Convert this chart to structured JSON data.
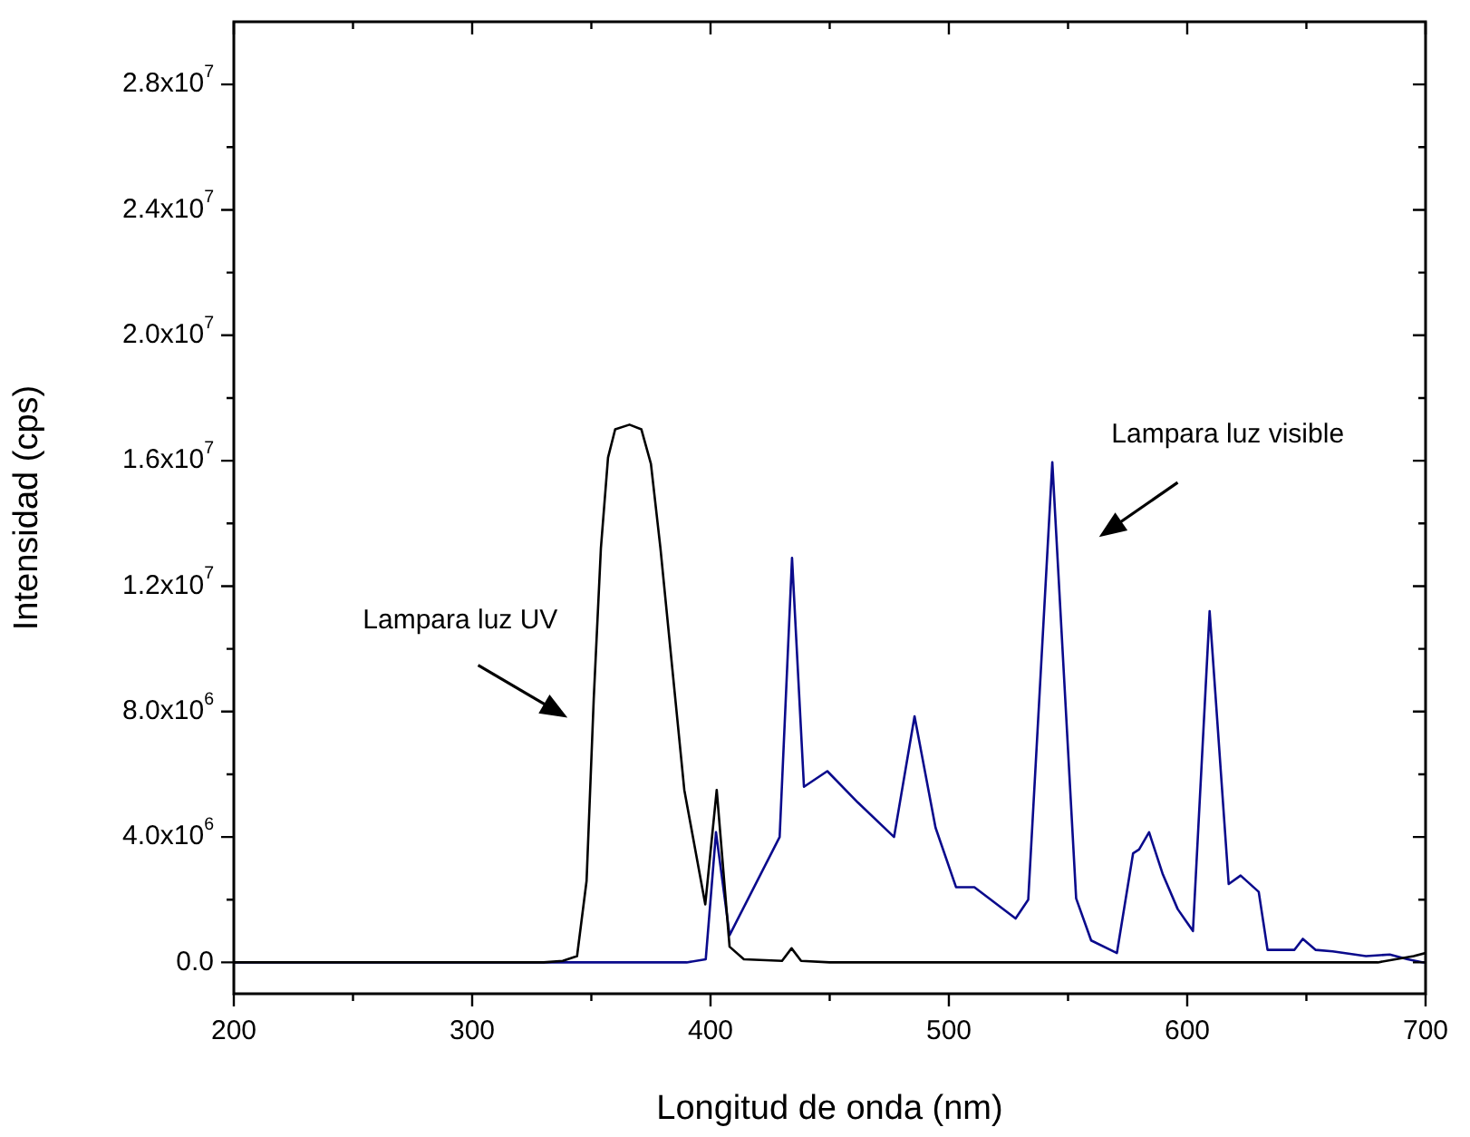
{
  "chart_data": {
    "type": "line",
    "xlabel": "Longitud de onda (nm)",
    "ylabel": "Intensidad (cps)",
    "xlim": [
      200,
      700
    ],
    "xticks": [
      200,
      {
        "value": 250,
        "label": null
      },
      300,
      {
        "value": 350,
        "label": null
      },
      400,
      {
        "value": 450,
        "label": null
      },
      500,
      {
        "value": 550,
        "label": null
      },
      600,
      {
        "value": 650,
        "label": null
      },
      700
    ],
    "ylim": [
      -1000000,
      30000000
    ],
    "yticks": [
      {
        "value": 0,
        "label": "0.0"
      },
      {
        "value": 2000000,
        "label": null
      },
      {
        "value": 4000000,
        "label": "4.0x10$^{6}$"
      },
      {
        "value": 6000000,
        "label": null
      },
      {
        "value": 8000000,
        "label": "8.0x10$^{6}$"
      },
      {
        "value": 10000000,
        "label": null
      },
      {
        "value": 12000000,
        "label": "1.2x10$^{7}$"
      },
      {
        "value": 14000000,
        "label": null
      },
      {
        "value": 16000000,
        "label": "1.6x10$^{7}$"
      },
      {
        "value": 18000000,
        "label": null
      },
      {
        "value": 20000000,
        "label": "2.0x10$^{7}$"
      },
      {
        "value": 22000000,
        "label": null
      },
      {
        "value": 24000000,
        "label": "2.4x10$^{7}$"
      },
      {
        "value": 26000000,
        "label": null
      },
      {
        "value": 28000000,
        "label": "2.8x10$^{7}$"
      }
    ],
    "grid": false,
    "legend": false,
    "marker": "none",
    "line_style": "solid",
    "series": [
      {
        "color": "#000000",
        "x": [
          200,
          250,
          300,
          330,
          338,
          344,
          348,
          351,
          354,
          357,
          360,
          366,
          371,
          375,
          379,
          384,
          389,
          397.8,
          402.6,
          408,
          414,
          430,
          434,
          438,
          450,
          500,
          600,
          680,
          695,
          700
        ],
        "values": [
          0,
          0,
          0,
          0,
          50000,
          200000,
          2600000,
          8400000,
          13200000,
          16100000,
          17000000,
          17150000,
          17000000,
          15900000,
          13200000,
          9350000,
          5500000,
          1850000,
          5500000,
          500000,
          100000,
          50000,
          450000,
          50000,
          0,
          0,
          0,
          0,
          200000,
          300000
        ]
      },
      {
        "color": "#0a0a8c",
        "x": [
          200,
          300,
          390,
          398,
          402.3,
          408,
          429,
          434.2,
          439.2,
          449,
          461.8,
          477,
          485.6,
          494.4,
          503,
          510.7,
          528,
          533.3,
          543.4,
          553.4,
          559.7,
          570.5,
          577.3,
          579.8,
          584,
          589.8,
          596,
          602.4,
          609.4,
          617.4,
          622.4,
          630,
          633.7,
          645,
          648.5,
          653.8,
          661,
          675,
          685,
          692.5,
          699,
          700
        ],
        "values": [
          0,
          0,
          0,
          100000,
          4150000,
          870000,
          4000000,
          12900000,
          5600000,
          6100000,
          5100000,
          4000000,
          7850000,
          4300000,
          2400000,
          2400000,
          1400000,
          2000000,
          15950000,
          2040000,
          700000,
          300000,
          3480000,
          3600000,
          4150000,
          2800000,
          1700000,
          1000000,
          11200000,
          2500000,
          2770000,
          2250000,
          400000,
          400000,
          750000,
          400000,
          350000,
          200000,
          250000,
          100000,
          0,
          0
        ]
      }
    ],
    "annotations": [
      "Lampara luz UV",
      "Lampara luz visible"
    ]
  }
}
